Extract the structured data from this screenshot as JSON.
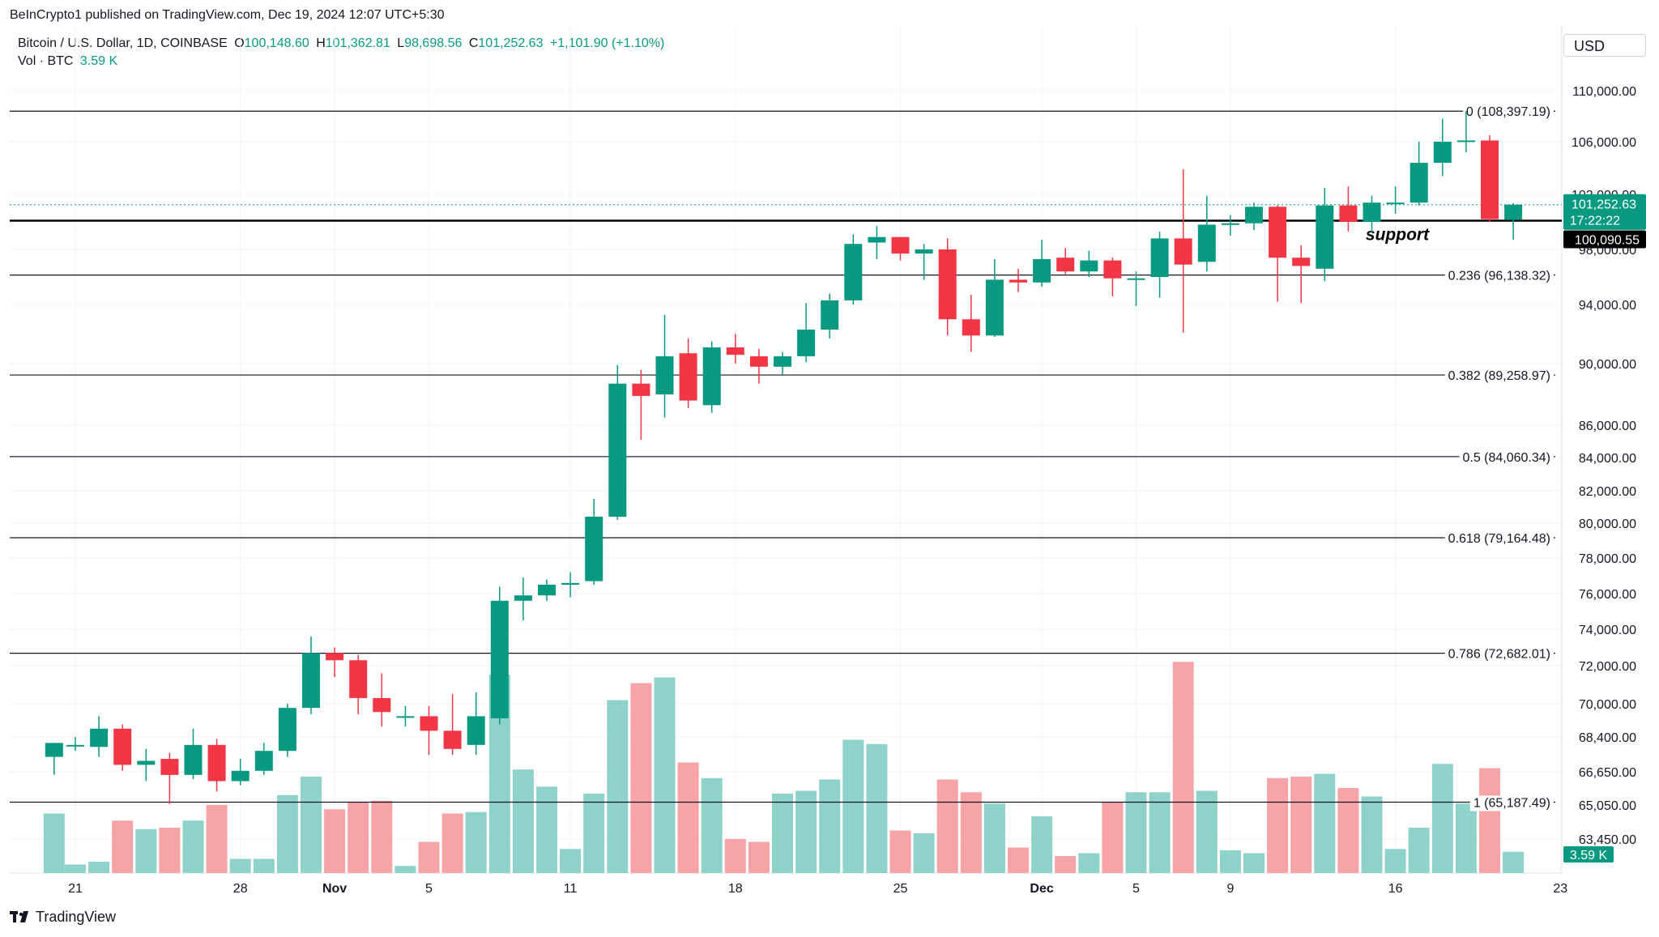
{
  "header": {
    "publisher": "BeInCrypto1 published on TradingView.com, Dec 19, 2024 12:07 UTC+5:30",
    "symbol": "Bitcoin / U.S. Dollar, 1D, COINBASE",
    "o_label": "O",
    "o_value": "100,148.60",
    "h_label": "H",
    "h_value": "101,362.81",
    "l_label": "L",
    "l_value": "98,698.56",
    "c_label": "C",
    "c_value": "101,252.63",
    "change": "+1,101.90 (+1.10%)",
    "vol_label": "Vol · BTC",
    "vol_value": "3.59 K",
    "currency": "USD"
  },
  "footer": {
    "brand": "TradingView"
  },
  "colors": {
    "up": "#089981",
    "down": "#f23645",
    "vol_up": "#8fd2c9",
    "vol_down": "#f6a4a8",
    "grid": "#f0f3fa",
    "line": "#131722"
  },
  "chart_data": {
    "type": "candlestick",
    "title": "Bitcoin / U.S. Dollar, 1D, COINBASE",
    "y_ticks": [
      {
        "value": 110000,
        "label": "110,000.00"
      },
      {
        "value": 106000,
        "label": "106,000.00"
      },
      {
        "value": 102000,
        "label": "102,000.00"
      },
      {
        "value": 98000,
        "label": "98,000.00"
      },
      {
        "value": 94000,
        "label": "94,000.00"
      },
      {
        "value": 90000,
        "label": "90,000.00"
      },
      {
        "value": 86000,
        "label": "86,000.00"
      },
      {
        "value": 84000,
        "label": "84,000.00"
      },
      {
        "value": 82000,
        "label": "82,000.00"
      },
      {
        "value": 80000,
        "label": "80,000.00"
      },
      {
        "value": 78000,
        "label": "78,000.00"
      },
      {
        "value": 76000,
        "label": "76,000.00"
      },
      {
        "value": 74000,
        "label": "74,000.00"
      },
      {
        "value": 72000,
        "label": "72,000.00"
      },
      {
        "value": 70000,
        "label": "70,000.00"
      },
      {
        "value": 68400,
        "label": "68,400.00"
      },
      {
        "value": 66650,
        "label": "66,650.00"
      },
      {
        "value": 65050,
        "label": "65,050.00"
      },
      {
        "value": 63450,
        "label": "63,450.00"
      }
    ],
    "x_ticks": [
      {
        "day": 0,
        "label": "21",
        "bold": false
      },
      {
        "day": 7,
        "label": "28",
        "bold": false
      },
      {
        "day": 11,
        "label": "Nov",
        "bold": true
      },
      {
        "day": 15,
        "label": "5",
        "bold": false
      },
      {
        "day": 21,
        "label": "11",
        "bold": false
      },
      {
        "day": 28,
        "label": "18",
        "bold": false
      },
      {
        "day": 35,
        "label": "25",
        "bold": false
      },
      {
        "day": 41,
        "label": "Dec",
        "bold": true
      },
      {
        "day": 45,
        "label": "5",
        "bold": false
      },
      {
        "day": 49,
        "label": "9",
        "bold": false
      },
      {
        "day": 56,
        "label": "16",
        "bold": false
      },
      {
        "day": 63,
        "label": "23",
        "bold": false
      }
    ],
    "fib_levels": [
      {
        "value": 108397.19,
        "label": "0 (108,397.19)"
      },
      {
        "value": 96138.32,
        "label": "0.236 (96,138.32)"
      },
      {
        "value": 89258.97,
        "label": "0.382 (89,258.97)"
      },
      {
        "value": 84060.34,
        "label": "0.5 (84,060.34)"
      },
      {
        "value": 79164.48,
        "label": "0.618 (79,164.48)"
      },
      {
        "value": 72682.01,
        "label": "0.786 (72,682.01)"
      },
      {
        "value": 65187.49,
        "label": "1 (65,187.49)"
      }
    ],
    "support": {
      "value": 100090.55,
      "label": "support",
      "price_label": "100,090.55"
    },
    "last_price": {
      "value": 101252.63,
      "label": "101,252.63",
      "countdown": "17:22:22"
    },
    "volume_last_label": "3.59 K",
    "candles": [
      {
        "d": -0.9,
        "o": 67400,
        "h": 68100,
        "l": 66500,
        "c": 68100,
        "v": 0.42
      },
      {
        "d": 0,
        "o": 68000,
        "h": 68400,
        "l": 67700,
        "c": 68000,
        "v": 0.06
      },
      {
        "d": 1,
        "o": 67900,
        "h": 69400,
        "l": 67400,
        "c": 68800,
        "v": 0.08
      },
      {
        "d": 2,
        "o": 68800,
        "h": 69000,
        "l": 66700,
        "c": 67000,
        "v": 0.37
      },
      {
        "d": 3,
        "o": 67000,
        "h": 67800,
        "l": 66200,
        "c": 67200,
        "v": 0.31
      },
      {
        "d": 4,
        "o": 67300,
        "h": 67600,
        "l": 65100,
        "c": 66500,
        "v": 0.32
      },
      {
        "d": 5,
        "o": 66500,
        "h": 68800,
        "l": 66300,
        "c": 68000,
        "v": 0.37
      },
      {
        "d": 6,
        "o": 68000,
        "h": 68300,
        "l": 65700,
        "c": 66200,
        "v": 0.48
      },
      {
        "d": 7,
        "o": 66200,
        "h": 67300,
        "l": 66000,
        "c": 66700,
        "v": 0.1
      },
      {
        "d": 8,
        "o": 66700,
        "h": 68100,
        "l": 66500,
        "c": 67700,
        "v": 0.1
      },
      {
        "d": 9,
        "o": 67700,
        "h": 70000,
        "l": 67400,
        "c": 69800,
        "v": 0.55
      },
      {
        "d": 10,
        "o": 69800,
        "h": 73600,
        "l": 69500,
        "c": 72700,
        "v": 0.68
      },
      {
        "d": 11,
        "o": 72700,
        "h": 73000,
        "l": 71400,
        "c": 72300,
        "v": 0.45
      },
      {
        "d": 12,
        "o": 72300,
        "h": 72600,
        "l": 69500,
        "c": 70300,
        "v": 0.5
      },
      {
        "d": 13,
        "o": 70300,
        "h": 71600,
        "l": 68900,
        "c": 69600,
        "v": 0.51
      },
      {
        "d": 14,
        "o": 69400,
        "h": 69900,
        "l": 68900,
        "c": 69400,
        "v": 0.05
      },
      {
        "d": 15,
        "o": 69400,
        "h": 69900,
        "l": 67500,
        "c": 68700,
        "v": 0.22
      },
      {
        "d": 16,
        "o": 68700,
        "h": 70500,
        "l": 67500,
        "c": 67800,
        "v": 0.42
      },
      {
        "d": 17,
        "o": 68000,
        "h": 70600,
        "l": 67500,
        "c": 69400,
        "v": 0.43
      },
      {
        "d": 18,
        "o": 69300,
        "h": 76400,
        "l": 69000,
        "c": 75600,
        "v": 1.4
      },
      {
        "d": 19,
        "o": 75600,
        "h": 76900,
        "l": 74500,
        "c": 75900,
        "v": 0.73
      },
      {
        "d": 20,
        "o": 75900,
        "h": 76800,
        "l": 75600,
        "c": 76500,
        "v": 0.61
      },
      {
        "d": 21,
        "o": 76500,
        "h": 77200,
        "l": 75800,
        "c": 76600,
        "v": 0.17
      },
      {
        "d": 22,
        "o": 76700,
        "h": 81500,
        "l": 76500,
        "c": 80400,
        "v": 0.56
      },
      {
        "d": 23,
        "o": 80400,
        "h": 89900,
        "l": 80200,
        "c": 88700,
        "v": 1.22
      },
      {
        "d": 24,
        "o": 88700,
        "h": 89600,
        "l": 85100,
        "c": 87900,
        "v": 1.34
      },
      {
        "d": 25,
        "o": 88000,
        "h": 93300,
        "l": 86500,
        "c": 90500,
        "v": 1.38
      },
      {
        "d": 26,
        "o": 90700,
        "h": 91700,
        "l": 87100,
        "c": 87600,
        "v": 0.78
      },
      {
        "d": 27,
        "o": 87300,
        "h": 91500,
        "l": 86800,
        "c": 91100,
        "v": 0.67
      },
      {
        "d": 28,
        "o": 91100,
        "h": 92000,
        "l": 90000,
        "c": 90600,
        "v": 0.24
      },
      {
        "d": 29,
        "o": 90500,
        "h": 91000,
        "l": 88700,
        "c": 89800,
        "v": 0.22
      },
      {
        "d": 30,
        "o": 89800,
        "h": 90800,
        "l": 89300,
        "c": 90500,
        "v": 0.56
      },
      {
        "d": 31,
        "o": 90500,
        "h": 94100,
        "l": 90100,
        "c": 92300,
        "v": 0.58
      },
      {
        "d": 32,
        "o": 92300,
        "h": 94800,
        "l": 91700,
        "c": 94300,
        "v": 0.66
      },
      {
        "d": 33,
        "o": 94300,
        "h": 99100,
        "l": 94000,
        "c": 98400,
        "v": 0.94
      },
      {
        "d": 34,
        "o": 98500,
        "h": 99700,
        "l": 97300,
        "c": 98900,
        "v": 0.91
      },
      {
        "d": 35,
        "o": 98900,
        "h": 98900,
        "l": 97200,
        "c": 97700,
        "v": 0.3
      },
      {
        "d": 36,
        "o": 97700,
        "h": 98400,
        "l": 95800,
        "c": 98000,
        "v": 0.28
      },
      {
        "d": 37,
        "o": 98000,
        "h": 98800,
        "l": 91900,
        "c": 93000,
        "v": 0.66
      },
      {
        "d": 38,
        "o": 93000,
        "h": 94700,
        "l": 90800,
        "c": 91900,
        "v": 0.57
      },
      {
        "d": 39,
        "o": 91900,
        "h": 97300,
        "l": 91800,
        "c": 95800,
        "v": 0.49
      },
      {
        "d": 40,
        "o": 95800,
        "h": 96600,
        "l": 94900,
        "c": 95600,
        "v": 0.18
      },
      {
        "d": 41,
        "o": 95600,
        "h": 98700,
        "l": 95300,
        "c": 97300,
        "v": 0.4
      },
      {
        "d": 42,
        "o": 97400,
        "h": 98100,
        "l": 96200,
        "c": 96400,
        "v": 0.12
      },
      {
        "d": 43,
        "o": 96400,
        "h": 97900,
        "l": 96000,
        "c": 97200,
        "v": 0.14
      },
      {
        "d": 44,
        "o": 97200,
        "h": 97400,
        "l": 94600,
        "c": 95900,
        "v": 0.5
      },
      {
        "d": 45,
        "o": 95900,
        "h": 96400,
        "l": 93900,
        "c": 95900,
        "v": 0.57
      },
      {
        "d": 46,
        "o": 96000,
        "h": 99300,
        "l": 94500,
        "c": 98800,
        "v": 0.57
      },
      {
        "d": 47,
        "o": 98800,
        "h": 103900,
        "l": 92100,
        "c": 96900,
        "v": 1.49
      },
      {
        "d": 48,
        "o": 97100,
        "h": 101900,
        "l": 96400,
        "c": 99800,
        "v": 0.58
      },
      {
        "d": 49,
        "o": 99800,
        "h": 100500,
        "l": 99000,
        "c": 99900,
        "v": 0.16
      },
      {
        "d": 50,
        "o": 99900,
        "h": 101400,
        "l": 99400,
        "c": 101100,
        "v": 0.14
      },
      {
        "d": 51,
        "o": 101100,
        "h": 101200,
        "l": 94200,
        "c": 97400,
        "v": 0.67
      },
      {
        "d": 52,
        "o": 97400,
        "h": 98300,
        "l": 94100,
        "c": 96800,
        "v": 0.68
      },
      {
        "d": 53,
        "o": 96600,
        "h": 102500,
        "l": 95700,
        "c": 101200,
        "v": 0.7
      },
      {
        "d": 54,
        "o": 101200,
        "h": 102600,
        "l": 99300,
        "c": 100000,
        "v": 0.6
      },
      {
        "d": 55,
        "o": 100000,
        "h": 101900,
        "l": 99200,
        "c": 101400,
        "v": 0.54
      },
      {
        "d": 56,
        "o": 101400,
        "h": 102600,
        "l": 100600,
        "c": 101400,
        "v": 0.17
      },
      {
        "d": 57,
        "o": 101400,
        "h": 106000,
        "l": 101200,
        "c": 104400,
        "v": 0.32
      },
      {
        "d": 58,
        "o": 104400,
        "h": 107800,
        "l": 103400,
        "c": 106000,
        "v": 0.77
      },
      {
        "d": 59,
        "o": 106100,
        "h": 108400,
        "l": 105200,
        "c": 106100,
        "v": 0.49
      },
      {
        "d": 60,
        "o": 106100,
        "h": 106500,
        "l": 100000,
        "c": 100200,
        "v": 0.74
      },
      {
        "d": 61,
        "o": 100148.6,
        "h": 101362.81,
        "l": 98698.56,
        "c": 101252.63,
        "v": 0.15
      }
    ]
  }
}
